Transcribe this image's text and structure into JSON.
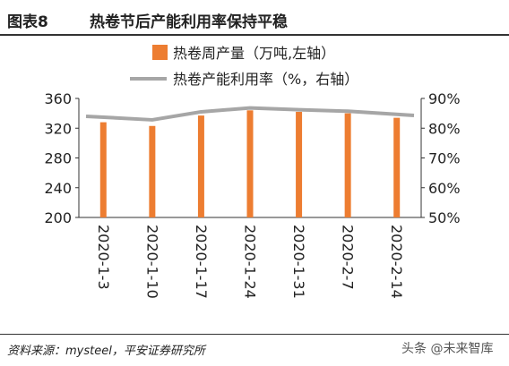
{
  "header": {
    "figure_number": "图表8",
    "title": "热卷节后产能利用率保持平稳"
  },
  "footer": {
    "source": "资料来源：mysteel，平安证券研究所",
    "watermark": "头条 @未来智库"
  },
  "colors": {
    "bar": "#ED7D31",
    "line": "#A6A6A6",
    "text": "#222222"
  },
  "chart_data": {
    "type": "bar",
    "categories": [
      "2020-1-3",
      "2020-1-10",
      "2020-1-17",
      "2020-1-24",
      "2020-1-31",
      "2020-2-7",
      "2020-2-14"
    ],
    "series": [
      {
        "name": "热卷周产量（万吨,左轴）",
        "type": "bar",
        "axis": "left",
        "values": [
          328,
          323,
          337,
          344,
          342,
          340,
          334
        ]
      },
      {
        "name": "热卷产能利用率（%，右轴）",
        "type": "line",
        "axis": "right",
        "values": [
          84.0,
          82.8,
          85.5,
          86.8,
          86.2,
          85.7,
          84.3
        ]
      }
    ],
    "y_left": {
      "min": 200,
      "max": 360,
      "ticks": [
        200,
        240,
        280,
        320,
        360
      ],
      "tick_labels": [
        "200",
        "240",
        "280",
        "320",
        "360"
      ]
    },
    "y_right": {
      "min": 50,
      "max": 90,
      "ticks": [
        50,
        60,
        70,
        80,
        90
      ],
      "tick_labels": [
        "50%",
        "60%",
        "70%",
        "80%",
        "90%"
      ]
    },
    "grid": false,
    "legend_position": "top"
  }
}
